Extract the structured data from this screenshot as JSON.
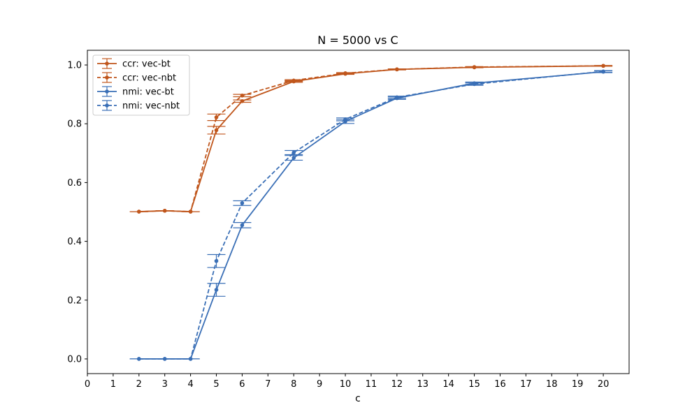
{
  "chart_data": {
    "type": "line",
    "title": "N = 5000 vs C",
    "xlabel": "c",
    "ylabel": "",
    "xlim": [
      0,
      21
    ],
    "ylim": [
      -0.05,
      1.05
    ],
    "xticks": [
      0,
      1,
      2,
      3,
      4,
      5,
      6,
      7,
      8,
      9,
      10,
      11,
      12,
      13,
      14,
      15,
      16,
      17,
      18,
      19,
      20
    ],
    "yticks": [
      0.0,
      0.2,
      0.4,
      0.6,
      0.8,
      1.0
    ],
    "ytick_labels": [
      "0.0",
      "0.2",
      "0.4",
      "0.6",
      "0.8",
      "1.0"
    ],
    "legend_position": "top-left",
    "x": [
      2,
      3,
      4,
      5,
      6,
      8,
      10,
      12,
      15,
      20
    ],
    "series": [
      {
        "name": "ccr: vec-bt",
        "color": "#c0561c",
        "dash": "solid",
        "values": [
          0.501,
          0.504,
          0.501,
          0.778,
          0.877,
          0.944,
          0.97,
          0.985,
          0.992,
          0.997
        ],
        "errors": [
          0.0,
          0.0,
          0.0,
          0.013,
          0.004,
          0.003,
          0.002,
          0.0015,
          0.0015,
          0.001
        ]
      },
      {
        "name": "ccr: vec-nbt",
        "color": "#c0561c",
        "dash": "dashed",
        "values": [
          0.501,
          0.504,
          0.501,
          0.822,
          0.896,
          0.947,
          0.972,
          0.985,
          0.993,
          0.997
        ],
        "errors": [
          0.0,
          0.0,
          0.0,
          0.011,
          0.004,
          0.003,
          0.002,
          0.0015,
          0.0015,
          0.001
        ]
      },
      {
        "name": "nmi: vec-bt",
        "color": "#3a6fb6",
        "dash": "solid",
        "values": [
          0.0,
          0.0,
          0.0,
          0.235,
          0.455,
          0.684,
          0.808,
          0.887,
          0.938,
          0.977
        ],
        "errors": [
          0.0,
          0.0,
          0.0,
          0.022,
          0.009,
          0.008,
          0.007,
          0.004,
          0.004,
          0.003
        ]
      },
      {
        "name": "nmi: vec-nbt",
        "color": "#3a6fb6",
        "dash": "dashed",
        "values": [
          0.0,
          0.0,
          0.0,
          0.333,
          0.53,
          0.702,
          0.815,
          0.89,
          0.935,
          0.978
        ],
        "errors": [
          0.0,
          0.0,
          0.0,
          0.022,
          0.008,
          0.007,
          0.005,
          0.004,
          0.004,
          0.003
        ]
      }
    ]
  }
}
